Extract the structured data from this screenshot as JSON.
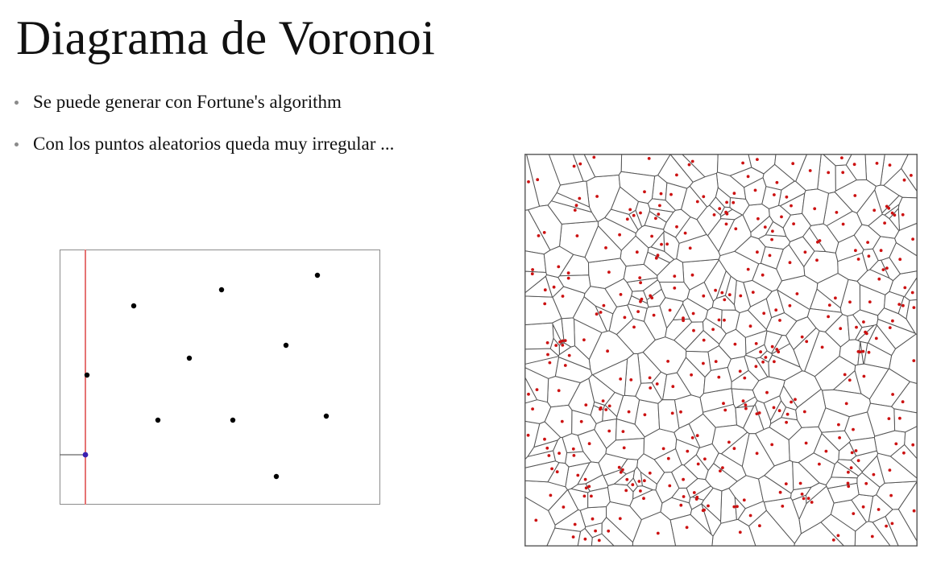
{
  "slide": {
    "title": "Diagrama de Voronoi",
    "bullets": [
      {
        "text": "Se puede generar con Fortune's algorithm"
      },
      {
        "text": "Con los puntos aleatorios queda muy irregular ..."
      }
    ]
  },
  "colors": {
    "text": "#111111",
    "bullet_marker": "#8a8a8a",
    "frame": "#8c8c8c",
    "sweep_line": "#e57373",
    "site": "#000000",
    "active_site": "#3a1fb0",
    "voronoi_edges": "#555555",
    "voronoi_sites": "#cc1111"
  }
}
